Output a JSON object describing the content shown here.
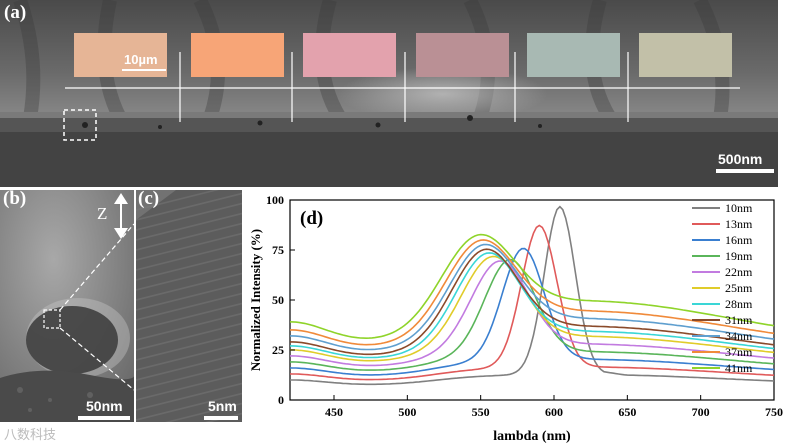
{
  "panel_a": {
    "label": "(a)",
    "scale_label": "500nm",
    "inset_scale_label": "10µm",
    "swatch_colors": [
      "#e6b596",
      "#f7a577",
      "#e3a2ad",
      "#ba9095",
      "#a8b9b3",
      "#c2c0a8"
    ]
  },
  "panel_b": {
    "label": "(b)",
    "axis_label": "Z",
    "scale_label": "50nm"
  },
  "panel_c": {
    "label": "(c)",
    "scale_label": "5nm"
  },
  "watermark": "八数科技",
  "chart_data": {
    "type": "line",
    "panel_label": "(d)",
    "xlabel": "lambda (nm)",
    "ylabel": "Normalized Intensity (%)",
    "xlim": [
      420,
      750
    ],
    "ylim": [
      0,
      100
    ],
    "xticks": [
      450,
      500,
      550,
      600,
      650,
      700,
      750
    ],
    "yticks": [
      0,
      25,
      50,
      75,
      100
    ],
    "series": [
      {
        "name": "10nm",
        "color": "#808080",
        "peak": 604,
        "amp": 91,
        "width": 15,
        "base": 10
      },
      {
        "name": "13nm",
        "color": "#e05a5a",
        "peak": 590,
        "amp": 80,
        "width": 17,
        "base": 13
      },
      {
        "name": "16nm",
        "color": "#3a7fd0",
        "peak": 579,
        "amp": 67,
        "width": 20,
        "base": 16
      },
      {
        "name": "19nm",
        "color": "#5ab55a",
        "peak": 570,
        "amp": 60,
        "width": 24,
        "base": 19
      },
      {
        "name": "22nm",
        "color": "#c27be0",
        "peak": 563,
        "amp": 58,
        "width": 27,
        "base": 22
      },
      {
        "name": "25nm",
        "color": "#e0cc2a",
        "peak": 558,
        "amp": 59,
        "width": 29,
        "base": 25
      },
      {
        "name": "28nm",
        "color": "#3ad6d6",
        "peak": 555,
        "amp": 60,
        "width": 30,
        "base": 27
      },
      {
        "name": "31nm",
        "color": "#8a4a2a",
        "peak": 553,
        "amp": 61,
        "width": 31,
        "base": 29
      },
      {
        "name": "34nm",
        "color": "#5f9fcf",
        "peak": 552,
        "amp": 62,
        "width": 32,
        "base": 32
      },
      {
        "name": "37nm",
        "color": "#f08a3a",
        "peak": 550,
        "amp": 63,
        "width": 33,
        "base": 35
      },
      {
        "name": "41nm",
        "color": "#8fd42a",
        "peak": 548,
        "amp": 64,
        "width": 34,
        "base": 39
      }
    ]
  }
}
